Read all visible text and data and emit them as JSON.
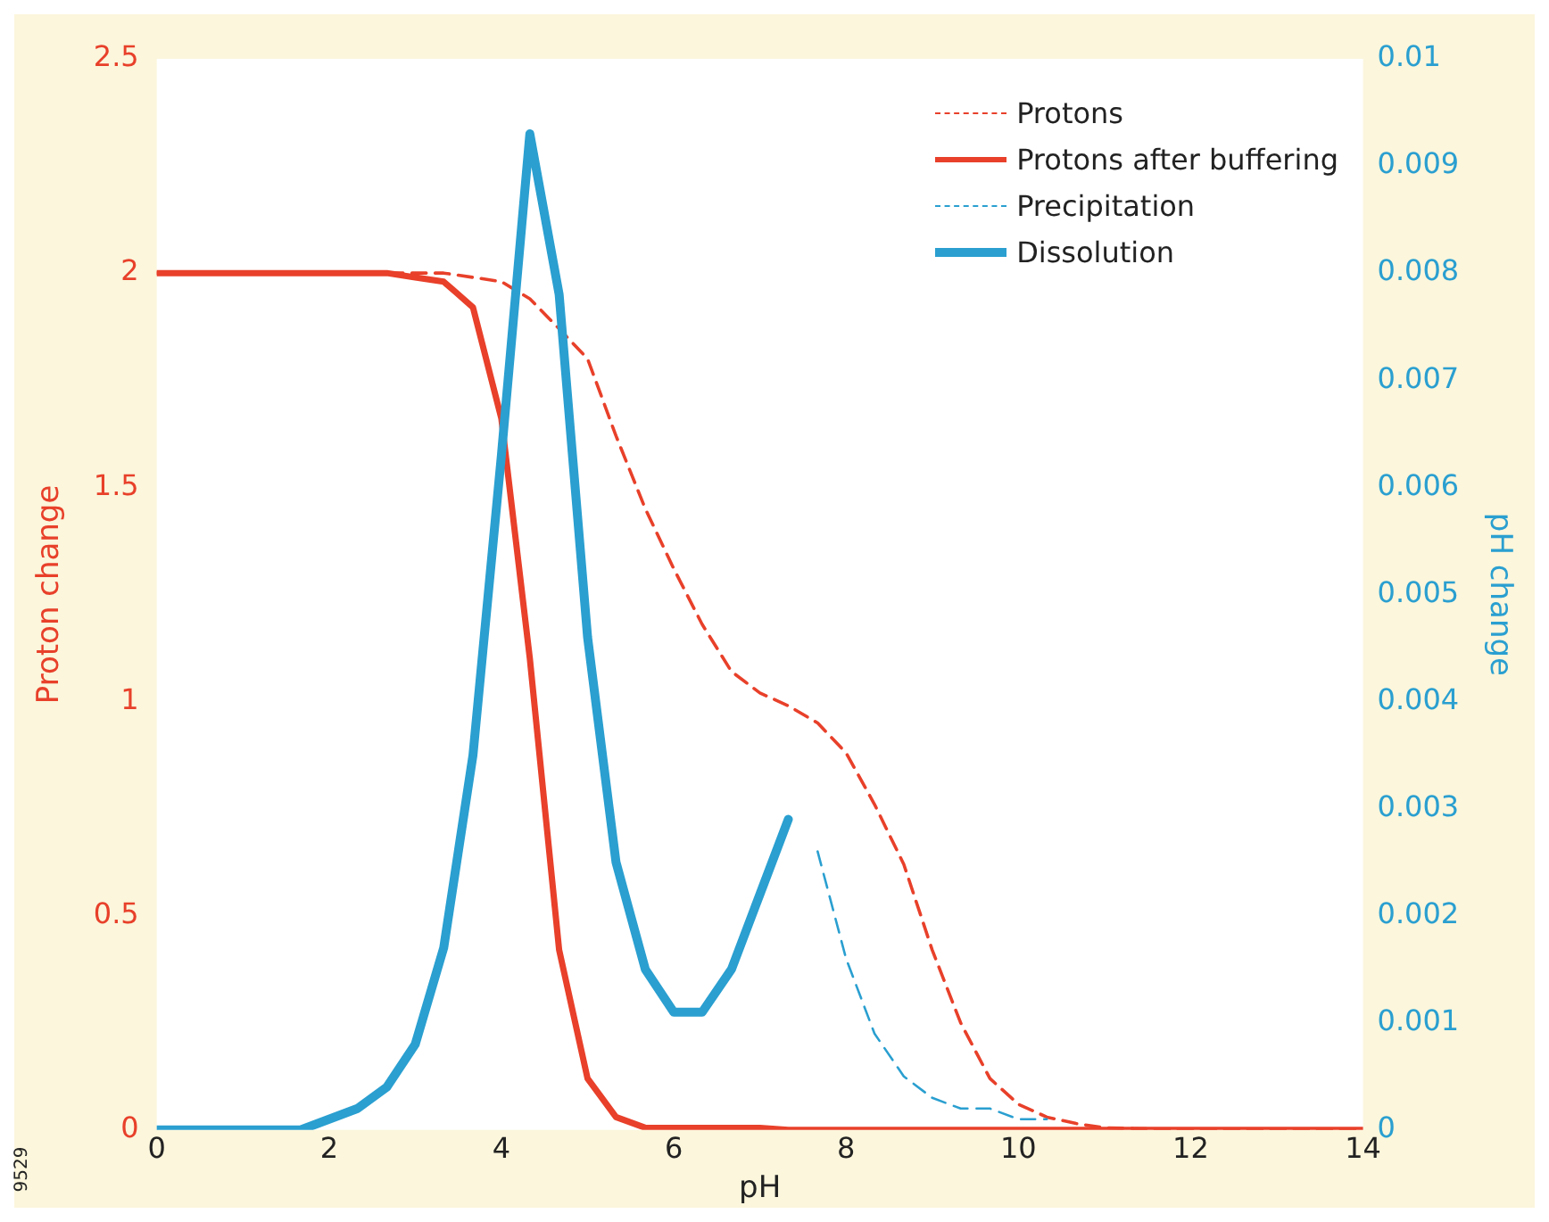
{
  "chart_data": {
    "type": "line",
    "xlabel": "pH",
    "ylabel": "Proton change",
    "y2label": "pH change",
    "xlim": [
      0,
      14
    ],
    "xticks": [
      0,
      2,
      4,
      6,
      8,
      10,
      12,
      14
    ],
    "ylim": [
      0,
      2.5
    ],
    "yticks": [
      0,
      0.5,
      1,
      1.5,
      2,
      2.5
    ],
    "y2lim": [
      0,
      0.01
    ],
    "y2ticks": [
      0,
      0.001,
      0.002,
      0.003,
      0.004,
      0.005,
      0.006,
      0.007,
      0.008,
      0.009,
      0.01
    ],
    "grid": false,
    "legend": "top right",
    "marker": "none",
    "annotations": [
      "9529"
    ],
    "series": [
      {
        "name": "Protons",
        "color": "#e8402a",
        "line_style": "dashed",
        "x": [
          0,
          1,
          2,
          2.67,
          3,
          3.33,
          3.67,
          4,
          4.33,
          4.67,
          5,
          5.33,
          5.67,
          6,
          6.33,
          6.67,
          7,
          7.33,
          7.67,
          8,
          8.33,
          8.67,
          9,
          9.33,
          9.67,
          10,
          10.33,
          10.67,
          11,
          12,
          13,
          14
        ],
        "values": [
          2,
          2,
          2,
          2,
          2,
          2,
          1.99,
          1.98,
          1.94,
          1.87,
          1.8,
          1.62,
          1.45,
          1.31,
          1.18,
          1.07,
          1.02,
          0.99,
          0.95,
          0.88,
          0.76,
          0.62,
          0.42,
          0.25,
          0.12,
          0.06,
          0.03,
          0.015,
          0.005,
          0,
          0,
          0
        ]
      },
      {
        "name": "Protons after buffering",
        "color": "#e8402a",
        "line_style": "solid",
        "x": [
          0,
          1,
          2,
          2.67,
          3,
          3.33,
          3.67,
          4,
          4.33,
          4.67,
          5,
          5.33,
          5.67,
          6,
          6.67,
          7,
          7.33,
          8,
          10,
          12,
          14
        ],
        "values": [
          2,
          2,
          2,
          2,
          1.99,
          1.98,
          1.92,
          1.66,
          1.1,
          0.42,
          0.12,
          0.03,
          0.005,
          0.005,
          0.005,
          0.005,
          0,
          0,
          0,
          0,
          0
        ]
      },
      {
        "name": "Precipitation",
        "color": "#2a9fd0",
        "line_style": "dashed",
        "axis": "y2",
        "x": [
          7.67,
          8,
          8.33,
          8.67,
          9,
          9.33,
          9.67,
          10,
          10.33
        ],
        "values": [
          0.0026,
          0.0016,
          0.0009,
          0.0005,
          0.0003,
          0.0002,
          0.0002,
          0.0001,
          0.0001
        ]
      },
      {
        "name": "Dissolution",
        "color": "#2a9fd0",
        "line_style": "solid",
        "axis": "y2",
        "x": [
          0,
          0.33,
          0.67,
          1,
          1.33,
          1.67,
          2,
          2.33,
          2.67,
          3,
          3.33,
          3.67,
          4,
          4.33,
          4.67,
          5,
          5.33,
          5.67,
          6,
          6.33,
          6.67,
          7,
          7.33
        ],
        "values": [
          0,
          0,
          0,
          0,
          0,
          0,
          0.0001,
          0.0002,
          0.0004,
          0.0008,
          0.0017,
          0.0035,
          0.0063,
          0.0093,
          0.0078,
          0.0046,
          0.0025,
          0.0015,
          0.0011,
          0.0011,
          0.0015,
          0.0022,
          0.0029
        ]
      }
    ]
  }
}
